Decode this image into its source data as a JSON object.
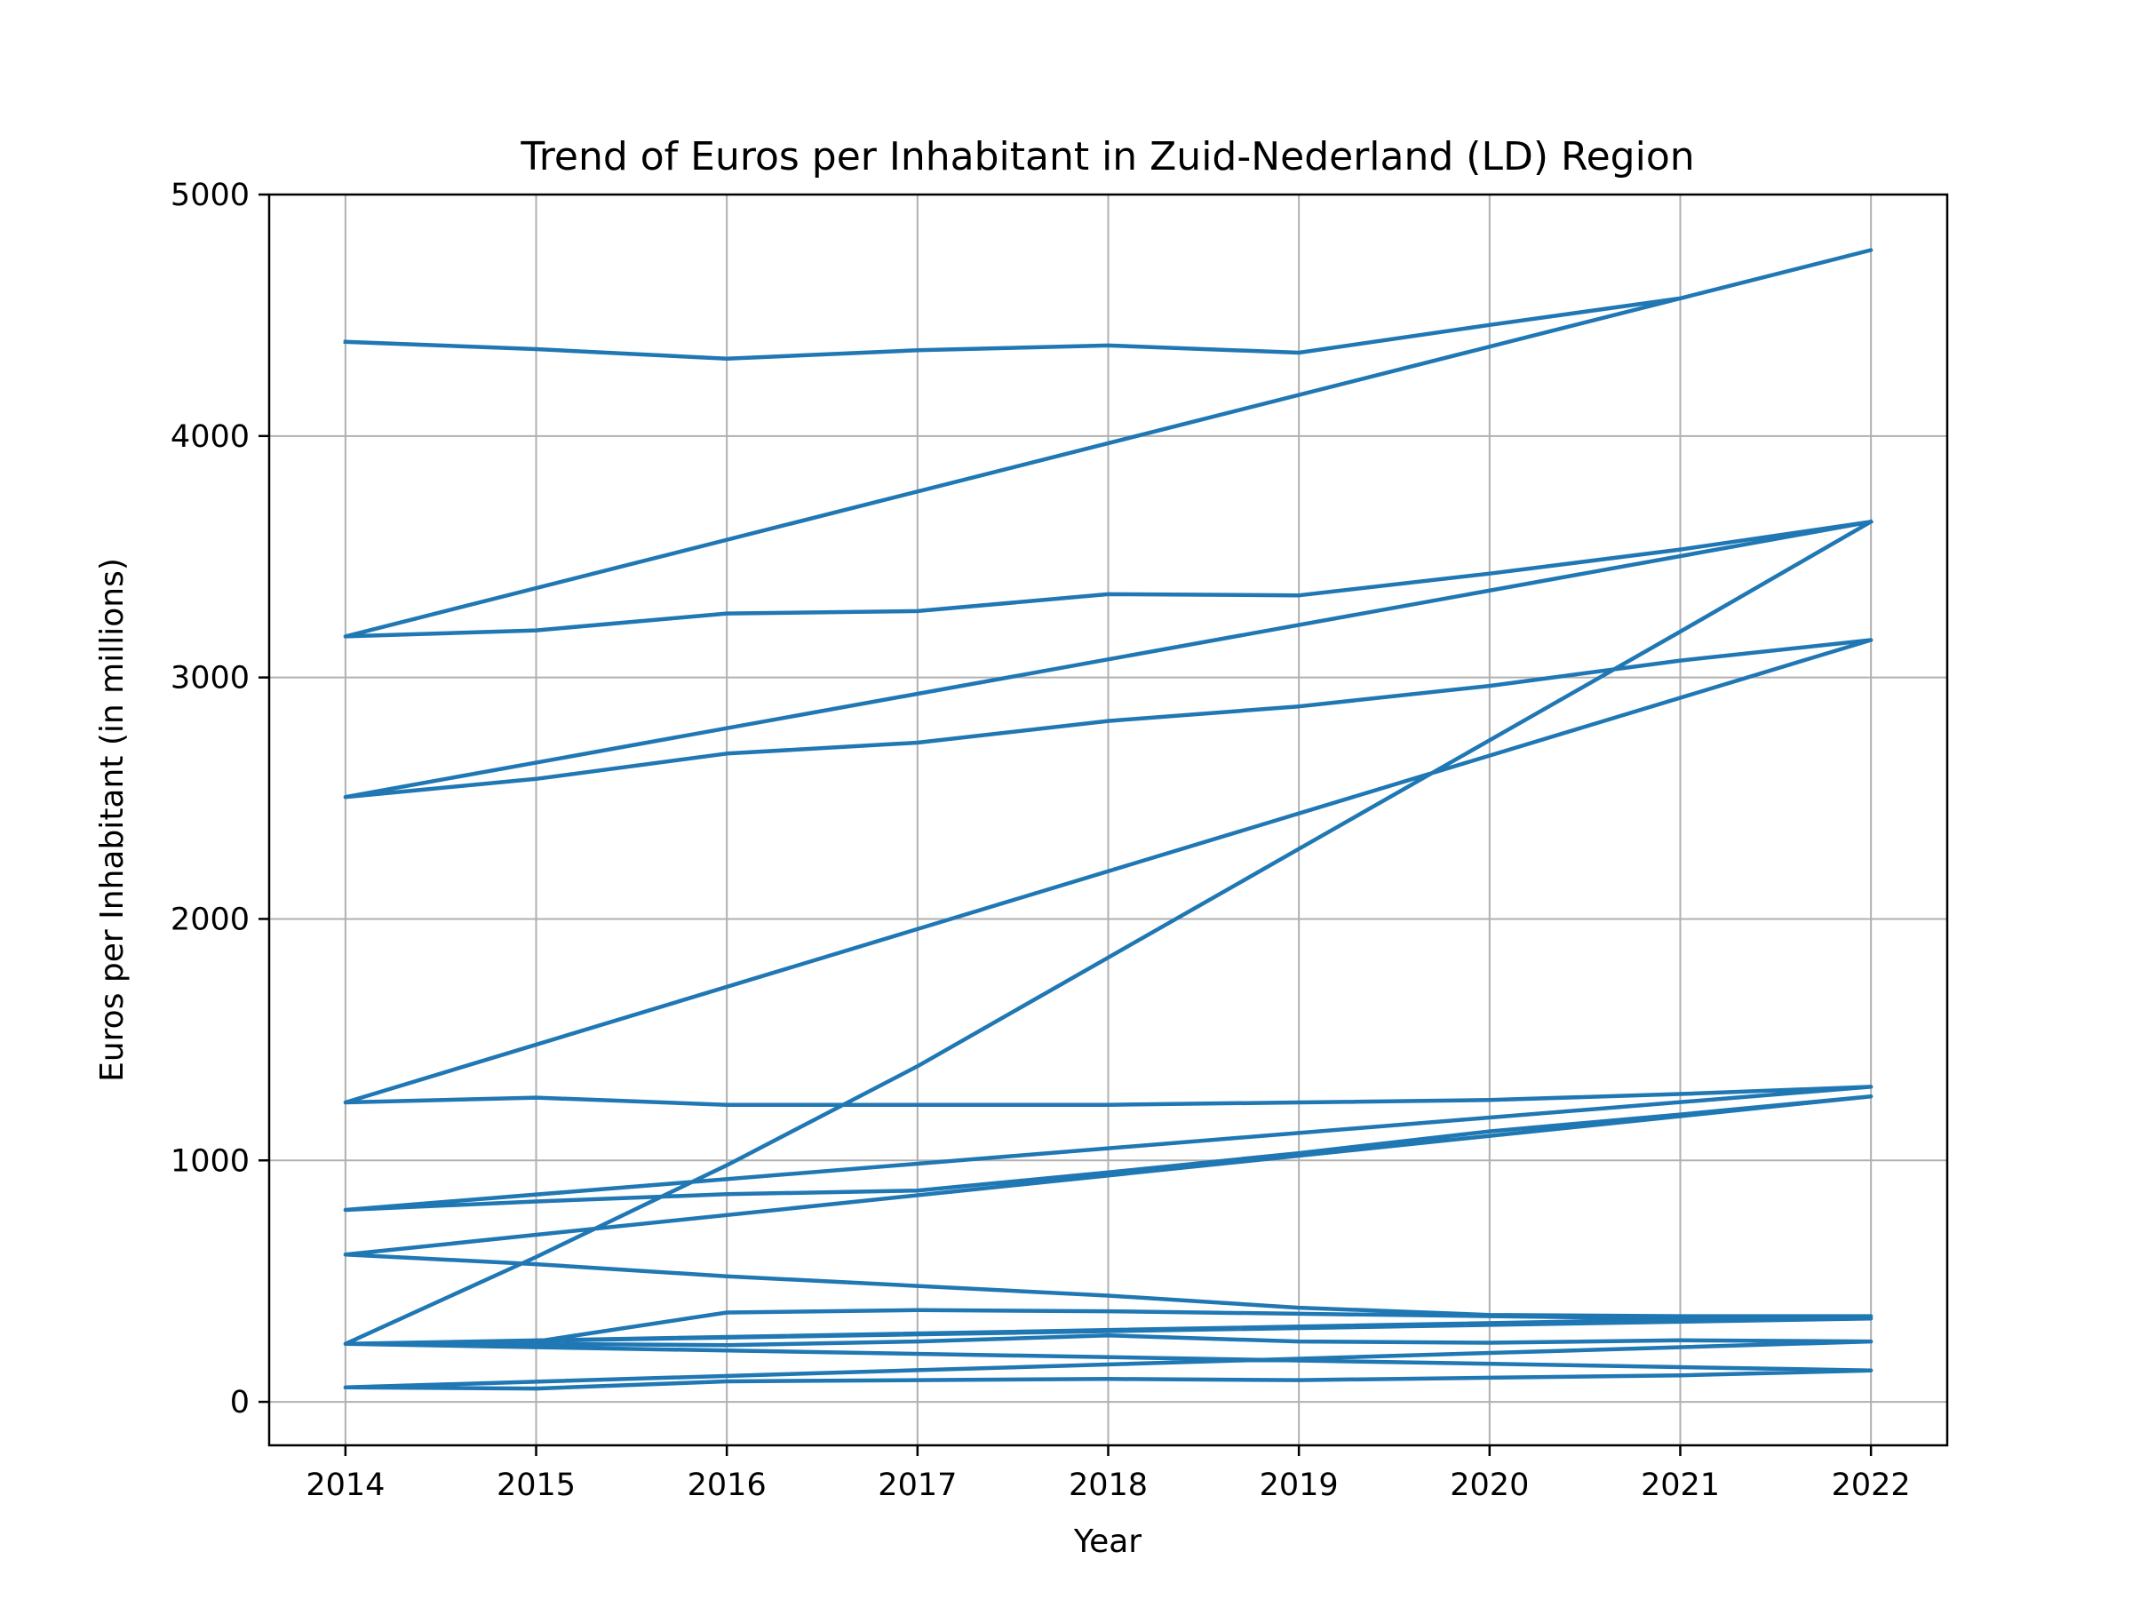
{
  "chart_data": {
    "type": "line",
    "title": "Trend of Euros per Inhabitant in Zuid-Nederland (LD) Region",
    "xlabel": "Year",
    "ylabel": "Euros per Inhabitant (in millions)",
    "xlim": [
      2013.6,
      2022.4
    ],
    "ylim": [
      -180,
      5000
    ],
    "x_ticks": [
      2014,
      2015,
      2016,
      2017,
      2018,
      2019,
      2020,
      2021,
      2022
    ],
    "y_ticks": [
      0,
      1000,
      2000,
      3000,
      4000,
      5000
    ],
    "grid": true,
    "color": "#1f77b4",
    "x": [
      2014,
      2015,
      2016,
      2017,
      2018,
      2019,
      2020,
      2021,
      2022,
      2014,
      2015,
      2016,
      2017,
      2018,
      2019,
      2020,
      2021,
      2022,
      2014,
      2015,
      2016,
      2017,
      2018,
      2019,
      2020,
      2021,
      2022,
      2014,
      2015,
      2016,
      2017,
      2018,
      2019,
      2020,
      2021,
      2022,
      2014,
      2015,
      2016,
      2017,
      2018,
      2019,
      2020,
      2021,
      2022,
      2014,
      2015,
      2016,
      2017,
      2018,
      2019,
      2020,
      2021,
      2022,
      2014,
      2015,
      2016,
      2017,
      2018,
      2019,
      2020,
      2021,
      2022,
      2014,
      2015,
      2016,
      2017,
      2018,
      2019,
      2020,
      2021,
      2022,
      2014,
      2015,
      2016,
      2017,
      2018,
      2019,
      2020,
      2021,
      2022,
      2014,
      2015,
      2016,
      2017,
      2018,
      2019,
      2020,
      2021,
      2022
    ],
    "values": [
      4390,
      4360,
      4320,
      4355,
      4375,
      4345,
      4460,
      4570,
      4770,
      3170,
      3195,
      3265,
      3275,
      3345,
      3340,
      3430,
      3530,
      3645,
      2505,
      2580,
      2685,
      2730,
      2820,
      2880,
      2965,
      3070,
      3155,
      1240,
      1260,
      1230,
      1230,
      1230,
      1240,
      1250,
      1275,
      1305,
      795,
      830,
      860,
      875,
      950,
      1030,
      1120,
      1190,
      1265,
      610,
      570,
      520,
      480,
      440,
      390,
      360,
      355,
      355,
      240,
      250,
      370,
      380,
      375,
      365,
      355,
      345,
      345,
      240,
      240,
      235,
      250,
      275,
      250,
      245,
      255,
      250,
      60,
      55,
      85,
      90,
      95,
      90,
      100,
      110,
      130,
      240,
      600,
      980,
      1390,
      1840,
      2290,
      2740,
      3190,
      3645
    ]
  }
}
